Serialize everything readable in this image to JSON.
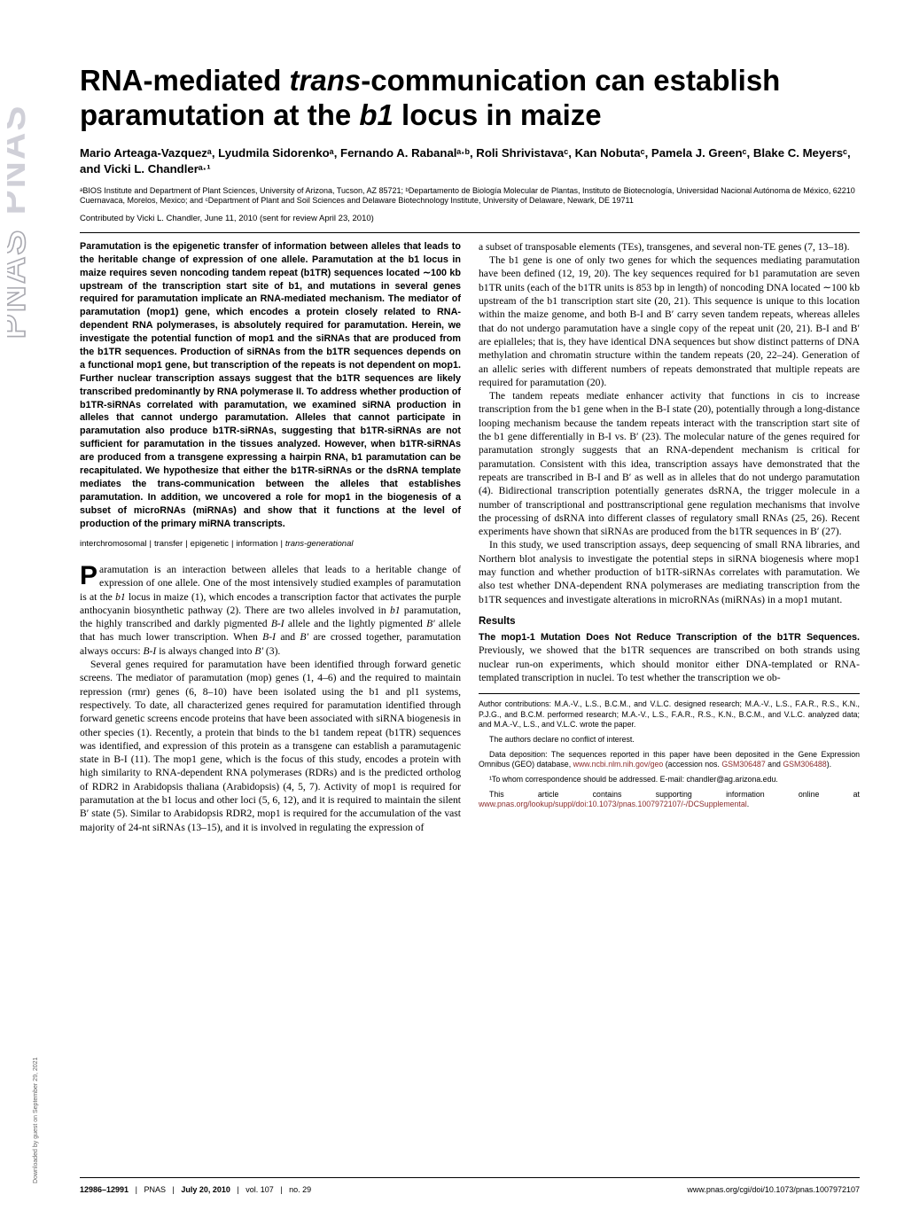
{
  "logo_text": "PNAS PNAS",
  "download_note": "Downloaded by guest on September 29, 2021",
  "title_pre": "RNA-mediated ",
  "title_ital1": "trans",
  "title_mid": "-communication can establish paramutation at the ",
  "title_ital2": "b1",
  "title_post": " locus in maize",
  "authors": "Mario Arteaga-Vazquezᵃ, Lyudmila Sidorenkoᵃ, Fernando A. Rabanalᵃ·ᵇ, Roli Shrivistavaᶜ, Kan Nobutaᶜ, Pamela J. Greenᶜ, Blake C. Meyersᶜ, and Vicki L. Chandlerᵃ·¹",
  "affiliations": "ᵃBIOS Institute and Department of Plant Sciences, University of Arizona, Tucson, AZ 85721; ᵇDepartamento de Biología Molecular de Plantas, Instituto de Biotecnología, Universidad Nacional Autónoma de México, 62210 Cuernavaca, Morelos, Mexico; and ᶜDepartment of Plant and Soil Sciences and Delaware Biotechnology Institute, University of Delaware, Newark, DE 19711",
  "contributed": "Contributed by Vicki L. Chandler, June 11, 2010 (sent for review April 23, 2010)",
  "abstract": "Paramutation is the epigenetic transfer of information between alleles that leads to the heritable change of expression of one allele. Paramutation at the b1 locus in maize requires seven noncoding tandem repeat (b1TR) sequences located ∼100 kb upstream of the transcription start site of b1, and mutations in several genes required for paramutation implicate an RNA-mediated mechanism. The mediator of paramutation (mop1) gene, which encodes a protein closely related to RNA-dependent RNA polymerases, is absolutely required for paramutation. Herein, we investigate the potential function of mop1 and the siRNAs that are produced from the b1TR sequences. Production of siRNAs from the b1TR sequences depends on a functional mop1 gene, but transcription of the repeats is not dependent on mop1. Further nuclear transcription assays suggest that the b1TR sequences are likely transcribed predominantly by RNA polymerase II. To address whether production of b1TR-siRNAs correlated with paramutation, we examined siRNA production in alleles that cannot undergo paramutation. Alleles that cannot participate in paramutation also produce b1TR-siRNAs, suggesting that b1TR-siRNAs are not sufficient for paramutation in the tissues analyzed. However, when b1TR-siRNAs are produced from a transgene expressing a hairpin RNA, b1 paramutation can be recapitulated. We hypothesize that either the b1TR-siRNAs or the dsRNA template mediates the trans-communication between the alleles that establishes paramutation. In addition, we uncovered a role for mop1 in the biogenesis of a subset of microRNAs (miRNAs) and show that it functions at the level of production of the primary miRNA transcripts.",
  "keywords": [
    "interchromosomal",
    "transfer",
    "epigenetic",
    "information",
    "trans-generational"
  ],
  "body_left_p1a": "aramutation is an interaction between alleles that leads to a heritable change of expression of one allele. One of the most intensively studied examples of paramutation is at the ",
  "body_left_p1b": " locus in maize (1), which encodes a transcription factor that activates the purple anthocyanin biosynthetic pathway (2). There are two alleles involved in ",
  "body_left_p1c": " paramutation, the highly transcribed and darkly pigmented ",
  "body_left_p1d": " allele and the lightly pigmented ",
  "body_left_p1e": " allele that has much lower transcription. When ",
  "body_left_p1f": " and ",
  "body_left_p1g": " are crossed together, paramutation always occurs: ",
  "body_left_p1h": " is always changed into ",
  "body_left_p1i": " (3).",
  "body_left_p2": "Several genes required for paramutation have been identified through forward genetic screens. The mediator of paramutation (mop) genes (1, 4–6) and the required to maintain repression (rmr) genes (6, 8–10) have been isolated using the b1 and pl1 systems, respectively. To date, all characterized genes required for paramutation identified through forward genetic screens encode proteins that have been associated with siRNA biogenesis in other species (1). Recently, a protein that binds to the b1 tandem repeat (b1TR) sequences was identified, and expression of this protein as a transgene can establish a paramutagenic state in B-I (11). The mop1 gene, which is the focus of this study, encodes a protein with high similarity to RNA-dependent RNA polymerases (RDRs) and is the predicted ortholog of RDR2 in Arabidopsis thaliana (Arabidopsis) (4, 5, 7). Activity of mop1 is required for paramutation at the b1 locus and other loci (5, 6, 12), and it is required to maintain the silent B′ state (5). Similar to Arabidopsis RDR2, mop1 is required for the accumulation of the vast majority of 24-nt siRNAs (13–15), and it is involved in regulating the expression of",
  "body_right_p1": "a subset of transposable elements (TEs), transgenes, and several non-TE genes (7, 13–18).",
  "body_right_p2": "The b1 gene is one of only two genes for which the sequences mediating paramutation have been defined (12, 19, 20). The key sequences required for b1 paramutation are seven b1TR units (each of the b1TR units is 853 bp in length) of noncoding DNA located ∼100 kb upstream of the b1 transcription start site (20, 21). This sequence is unique to this location within the maize genome, and both B-I and B′ carry seven tandem repeats, whereas alleles that do not undergo paramutation have a single copy of the repeat unit (20, 21). B-I and B′ are epialleles; that is, they have identical DNA sequences but show distinct patterns of DNA methylation and chromatin structure within the tandem repeats (20, 22–24). Generation of an allelic series with different numbers of repeats demonstrated that multiple repeats are required for paramutation (20).",
  "body_right_p3": "The tandem repeats mediate enhancer activity that functions in cis to increase transcription from the b1 gene when in the B-I state (20), potentially through a long-distance looping mechanism because the tandem repeats interact with the transcription start site of the b1 gene differentially in B-I vs. B′ (23). The molecular nature of the genes required for paramutation strongly suggests that an RNA-dependent mechanism is critical for paramutation. Consistent with this idea, transcription assays have demonstrated that the repeats are transcribed in B-I and B′ as well as in alleles that do not undergo paramutation (4). Bidirectional transcription potentially generates dsRNA, the trigger molecule in a number of transcriptional and posttranscriptional gene regulation mechanisms that involve the processing of dsRNA into different classes of regulatory small RNAs (25, 26). Recent experiments have shown that siRNAs are produced from the b1TR sequences in B′ (27).",
  "body_right_p4": "In this study, we used transcription assays, deep sequencing of small RNA libraries, and Northern blot analysis to investigate the potential steps in siRNA biogenesis where mop1 may function and whether production of b1TR-siRNAs correlates with paramutation. We also test whether DNA-dependent RNA polymerases are mediating transcription from the b1TR sequences and investigate alterations in microRNAs (miRNAs) in a mop1 mutant.",
  "results_head": "Results",
  "results_runin": "The mop1-1 Mutation Does Not Reduce Transcription of the b1TR Sequences.",
  "results_p1": " Previously, we showed that the b1TR sequences are transcribed on both strands using nuclear run-on experiments, which should monitor either DNA-templated or RNA-templated transcription in nuclei. To test whether the transcription we ob-",
  "fn_author": "Author contributions: M.A.-V., L.S., B.C.M., and V.L.C. designed research; M.A.-V., L.S., F.A.R., R.S., K.N., P.J.G., and B.C.M. performed research; M.A.-V., L.S., F.A.R., R.S., K.N., B.C.M., and V.L.C. analyzed data; and M.A.-V., L.S., and V.L.C. wrote the paper.",
  "fn_conflict": "The authors declare no conflict of interest.",
  "fn_data_pre": "Data deposition: The sequences reported in this paper have been deposited in the Gene Expression Omnibus (GEO) database, ",
  "fn_data_link1": "www.ncbi.nlm.nih.gov/geo",
  "fn_data_mid": " (accession nos. ",
  "fn_data_link2": "GSM306487",
  "fn_data_and": " and ",
  "fn_data_link3": "GSM306488",
  "fn_data_post": ").",
  "fn_corr": "¹To whom correspondence should be addressed. E-mail: chandler@ag.arizona.edu.",
  "fn_si_pre": "This article contains supporting information online at ",
  "fn_si_link": "www.pnas.org/lookup/suppl/doi:10.1073/pnas.1007972107/-/DCSupplemental",
  "fn_si_post": ".",
  "footer_left_page": "12986–12991",
  "footer_left_pnas": "PNAS",
  "footer_left_date": "July 20, 2010",
  "footer_left_vol": "vol. 107",
  "footer_left_no": "no. 29",
  "footer_right": "www.pnas.org/cgi/doi/10.1073/pnas.1007972107",
  "colors": {
    "link": "#8b2e2e",
    "text": "#000000",
    "bg": "#ffffff",
    "logo_outline": "#a9a9b0",
    "logo_letter": "#d0d0d8"
  }
}
